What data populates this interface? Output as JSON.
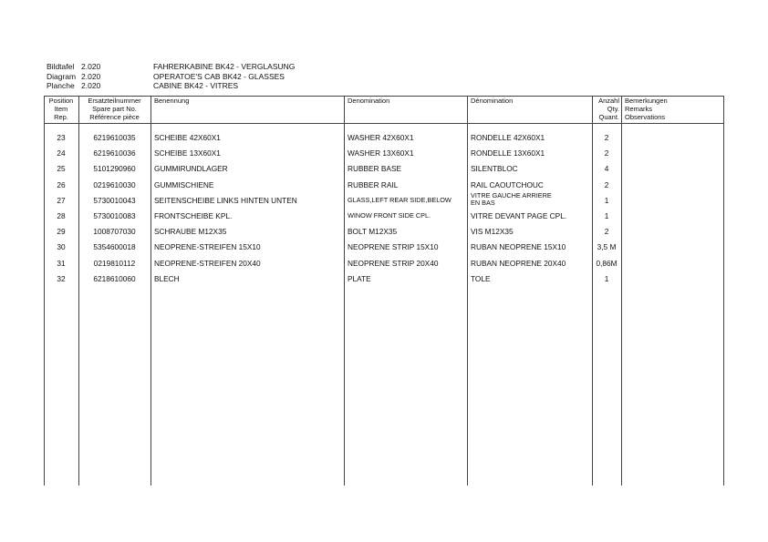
{
  "header": {
    "labels": [
      "Bildtafel",
      "Diagram",
      "Planche"
    ],
    "numbers": [
      "2.020",
      "2.020",
      "2.020"
    ],
    "titles": [
      "FAHRERKABINE BK42 - VERGLASUNG",
      "OPERATOE'S CAB BK42 - GLASSES",
      "CABINE BK42 - VITRES"
    ]
  },
  "columns": {
    "position": [
      "Position",
      "Item",
      "Rep."
    ],
    "part_no": [
      "Ersatzteilnummer",
      "Spare part No.",
      "Référence pièce"
    ],
    "benennung": "Benennung",
    "denomination_en": "Denomination",
    "denomination_fr": "Dénomination",
    "qty": [
      "Anzahl",
      "Qty.",
      "Quant."
    ],
    "remarks": [
      "Bemerkungen",
      "Remarks",
      "Observations"
    ]
  },
  "rows": [
    {
      "pos": "23",
      "part": "6219610035",
      "de": "SCHEIBE  42X60X1",
      "en": "WASHER 42X60X1",
      "fr": "RONDELLE 42X60X1",
      "qty": "2"
    },
    {
      "pos": "24",
      "part": "6219610036",
      "de": "SCHEIBE  13X60X1",
      "en": "WASHER 13X60X1",
      "fr": "RONDELLE 13X60X1",
      "qty": "2"
    },
    {
      "pos": "25",
      "part": "5101290960",
      "de": "GUMMIRUNDLAGER",
      "en": "RUBBER BASE",
      "fr": "SILENTBLOC",
      "qty": "4"
    },
    {
      "pos": "26",
      "part": "0219610030",
      "de": "GUMMISCHIENE",
      "en": "RUBBER RAIL",
      "fr": "RAIL CAOUTCHOUC",
      "qty": "2"
    },
    {
      "pos": "27",
      "part": "5730010043",
      "de": "SEITENSCHEIBE LINKS HINTEN UNTEN",
      "en": "GLASS,LEFT REAR SIDE,BELOW",
      "fr": "VITRE GAUCHE ARRIERE\nEN BAS",
      "qty": "1"
    },
    {
      "pos": "28",
      "part": "5730010083",
      "de": "FRONTSCHEIBE KPL.",
      "en": "WINOW FRONT SIDE CPL.",
      "fr": "VITRE DEVANT PAGE CPL.",
      "qty": "1"
    },
    {
      "pos": "29",
      "part": "1008707030",
      "de": "SCHRAUBE M12X35",
      "en": "BOLT M12X35",
      "fr": "VIS M12X35",
      "qty": "2"
    },
    {
      "pos": "30",
      "part": "5354600018",
      "de": "NEOPRENE-STREIFEN 15X10",
      "en": "NEOPRENE STRIP 15X10",
      "fr": "RUBAN NEOPRENE 15X10",
      "qty": "3,5 M"
    },
    {
      "pos": "31",
      "part": "0219810112",
      "de": "NEOPRENE-STREIFEN 20X40",
      "en": "NEOPRENE STRIP 20X40",
      "fr": "RUBAN NEOPRENE 20X40",
      "qty": "0,86M"
    },
    {
      "pos": "32",
      "part": "6218610060",
      "de": "BLECH",
      "en": "PLATE",
      "fr": "TOLE",
      "qty": "1"
    }
  ]
}
